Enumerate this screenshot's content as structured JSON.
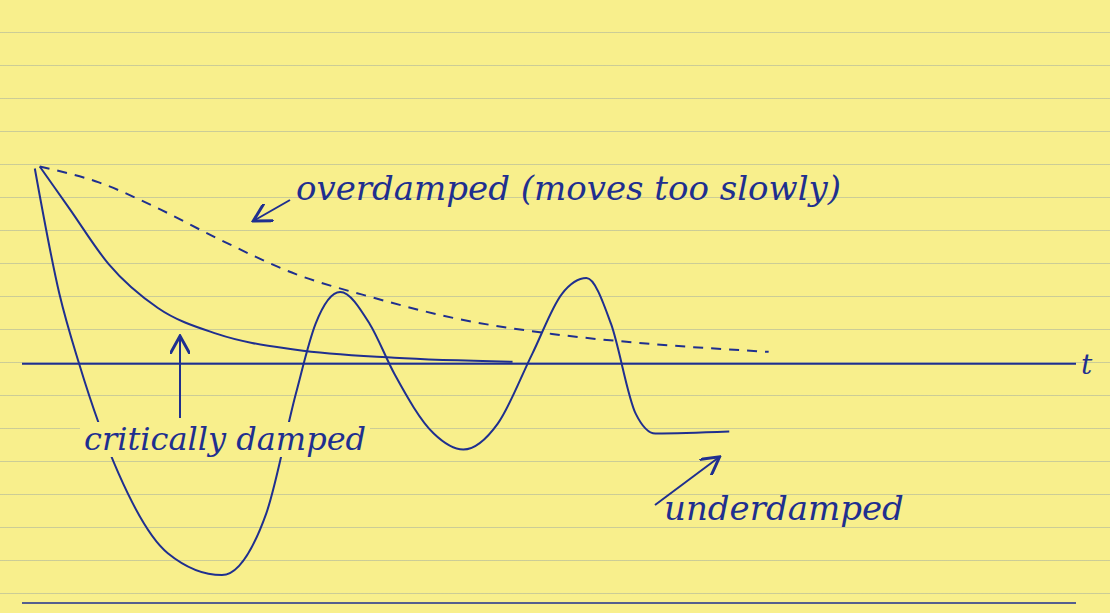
{
  "chart_data": {
    "type": "line",
    "x_label": "t",
    "xlim": [
      0,
      10.7
    ],
    "ylim": [
      -1.2,
      1.8
    ],
    "tick_labels": false,
    "annotations": [
      "(moves too slowly)"
    ],
    "series": [
      {
        "name": "overdamped",
        "color": "#1f2f8f",
        "line_style": "dashed",
        "x": [
          0.18,
          0.78,
          1.38,
          1.98,
          2.78,
          3.58,
          4.38,
          5.38,
          6.38,
          7.58
        ],
        "values": [
          0.99,
          0.91,
          0.78,
          0.63,
          0.45,
          0.33,
          0.23,
          0.15,
          0.1,
          0.06
        ]
      },
      {
        "name": "critically damped",
        "color": "#1f2f8f",
        "line_style": "solid",
        "x": [
          0.18,
          0.48,
          0.88,
          1.38,
          1.98,
          2.78,
          3.78,
          4.98
        ],
        "values": [
          0.99,
          0.78,
          0.5,
          0.28,
          0.15,
          0.07,
          0.03,
          0.01
        ]
      },
      {
        "name": "underdamped",
        "color": "#1f2f8f",
        "line_style": "solid",
        "x": [
          0.13,
          0.38,
          0.58,
          0.98,
          1.48,
          2.03,
          2.48,
          2.78,
          2.98,
          3.23,
          3.53,
          3.78,
          4.18,
          4.48,
          4.83,
          5.18,
          5.48,
          5.73,
          5.98,
          6.23,
          6.43,
          7.18
        ],
        "values": [
          0.98,
          0.35,
          0,
          -0.55,
          -0.95,
          -1.06,
          -0.75,
          -0.15,
          0.2,
          0.36,
          0.2,
          -0.05,
          -0.35,
          -0.43,
          -0.3,
          0.05,
          0.35,
          0.43,
          0.2,
          -0.25,
          -0.35,
          -0.34
        ]
      }
    ]
  }
}
